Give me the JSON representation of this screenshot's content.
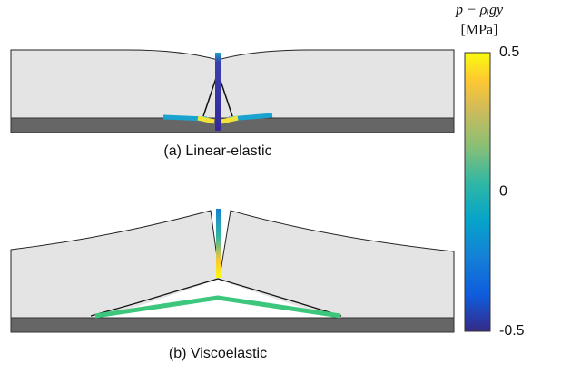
{
  "panels": [
    {
      "label": "(a) Linear-elastic"
    },
    {
      "label": "(b) Viscoelastic"
    }
  ],
  "colorbar": {
    "title": "p − ρᵢgy",
    "unit": "[MPa]",
    "lim": [
      -0.5,
      0.5
    ],
    "ticks": [
      0.5,
      0,
      -0.5
    ]
  }
}
